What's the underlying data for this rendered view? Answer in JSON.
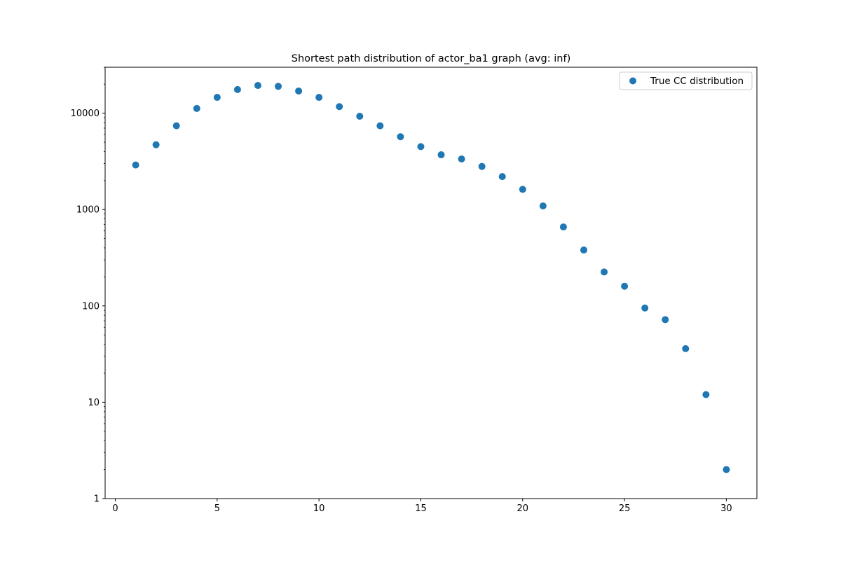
{
  "chart_data": {
    "type": "scatter",
    "title": "Shortest path distribution of actor_ba1 graph (avg: inf)",
    "xlabel": "",
    "ylabel": "",
    "x_scale": "linear",
    "y_scale": "log",
    "xlim": [
      -0.5,
      31.5
    ],
    "ylim": [
      1,
      30000
    ],
    "x_ticks": [
      0,
      5,
      10,
      15,
      20,
      25,
      30
    ],
    "x_tick_labels": [
      "0",
      "5",
      "10",
      "15",
      "20",
      "25",
      "30"
    ],
    "y_ticks": [
      1,
      10,
      100,
      1000,
      10000
    ],
    "y_tick_labels": [
      "1",
      "10",
      "100",
      "1000",
      "10000"
    ],
    "grid": false,
    "legend": {
      "position": "top-right",
      "entries": [
        "True CC distribution"
      ]
    },
    "series": [
      {
        "name": "True CC distribution",
        "color": "#1f77b4",
        "x": [
          1,
          2,
          3,
          4,
          5,
          6,
          7,
          8,
          9,
          10,
          11,
          12,
          13,
          14,
          15,
          16,
          17,
          18,
          19,
          20,
          21,
          22,
          23,
          24,
          25,
          26,
          27,
          28,
          29,
          30
        ],
        "y": [
          2900,
          4700,
          7400,
          11200,
          14600,
          17600,
          19400,
          19000,
          17000,
          14600,
          11700,
          9300,
          7400,
          5700,
          4500,
          3700,
          3350,
          2800,
          2200,
          1620,
          1090,
          660,
          380,
          225,
          160,
          95,
          72,
          36,
          12,
          2
        ]
      }
    ]
  }
}
